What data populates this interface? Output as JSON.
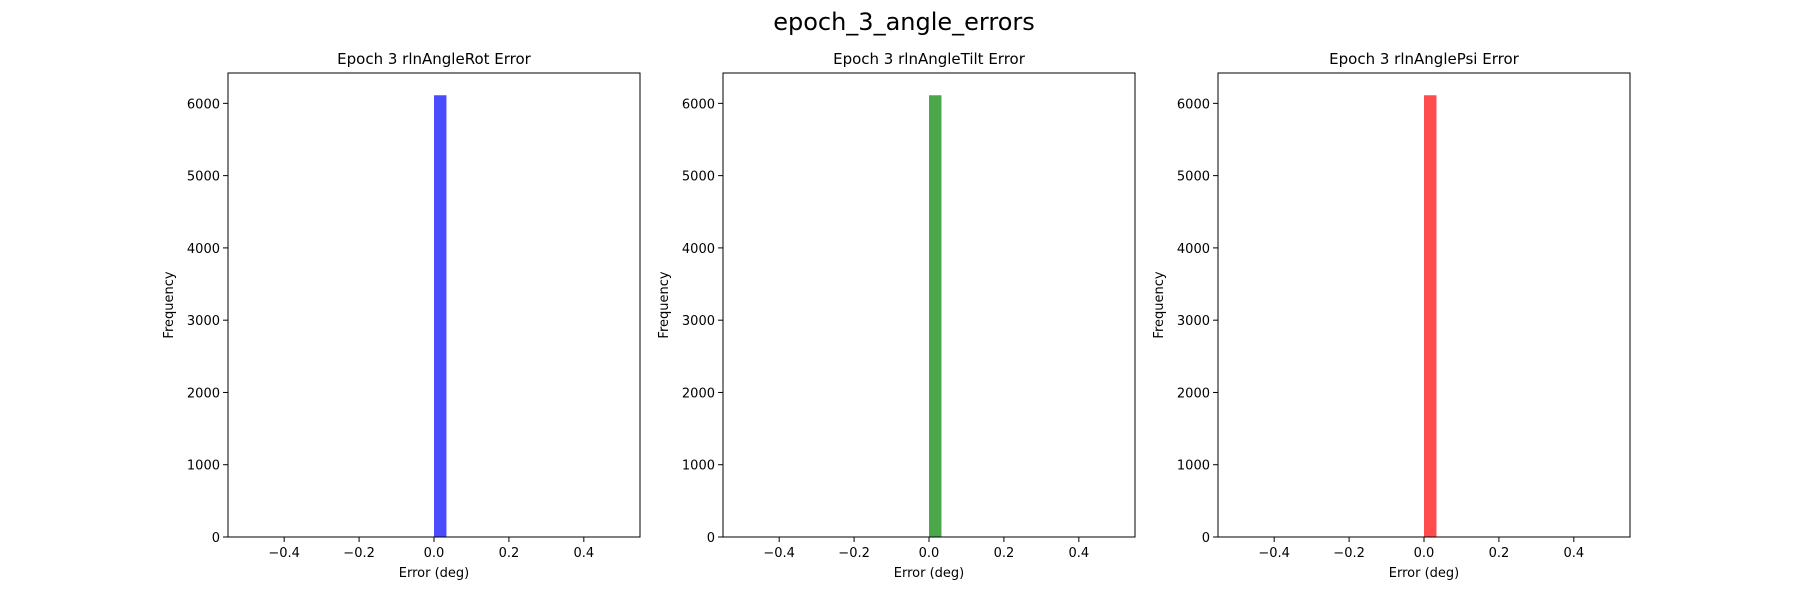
{
  "figure": {
    "suptitle": "epoch_3_angle_errors"
  },
  "chart_data": [
    {
      "type": "bar",
      "title": "Epoch 3 rlnAngleRot Error",
      "xlabel": "Error (deg)",
      "ylabel": "Frequency",
      "xlim": [
        -0.55,
        0.55
      ],
      "ylim": [
        0,
        6420
      ],
      "xticks": [
        -0.4,
        -0.2,
        0.0,
        0.2,
        0.4
      ],
      "xtick_labels": [
        "−0.4",
        "−0.2",
        "0.0",
        "0.2",
        "0.4"
      ],
      "yticks": [
        0,
        1000,
        2000,
        3000,
        4000,
        5000,
        6000
      ],
      "ytick_labels": [
        "0",
        "1000",
        "2000",
        "3000",
        "4000",
        "5000",
        "6000"
      ],
      "bins": [
        {
          "x0": 0.0,
          "x1": 0.0333,
          "count": 6112
        }
      ],
      "color": "#0000ff",
      "alpha": 0.7,
      "grid": false
    },
    {
      "type": "bar",
      "title": "Epoch 3 rlnAngleTilt Error",
      "xlabel": "Error (deg)",
      "ylabel": "Frequency",
      "xlim": [
        -0.55,
        0.55
      ],
      "ylim": [
        0,
        6420
      ],
      "xticks": [
        -0.4,
        -0.2,
        0.0,
        0.2,
        0.4
      ],
      "xtick_labels": [
        "−0.4",
        "−0.2",
        "0.0",
        "0.2",
        "0.4"
      ],
      "yticks": [
        0,
        1000,
        2000,
        3000,
        4000,
        5000,
        6000
      ],
      "ytick_labels": [
        "0",
        "1000",
        "2000",
        "3000",
        "4000",
        "5000",
        "6000"
      ],
      "bins": [
        {
          "x0": 0.0,
          "x1": 0.0333,
          "count": 6112
        }
      ],
      "color": "#008000",
      "alpha": 0.7,
      "grid": false
    },
    {
      "type": "bar",
      "title": "Epoch 3 rlnAnglePsi Error",
      "xlabel": "Error (deg)",
      "ylabel": "Frequency",
      "xlim": [
        -0.55,
        0.55
      ],
      "ylim": [
        0,
        6420
      ],
      "xticks": [
        -0.4,
        -0.2,
        0.0,
        0.2,
        0.4
      ],
      "xtick_labels": [
        "−0.4",
        "−0.2",
        "0.0",
        "0.2",
        "0.4"
      ],
      "yticks": [
        0,
        1000,
        2000,
        3000,
        4000,
        5000,
        6000
      ],
      "ytick_labels": [
        "0",
        "1000",
        "2000",
        "3000",
        "4000",
        "5000",
        "6000"
      ],
      "bins": [
        {
          "x0": 0.0,
          "x1": 0.0333,
          "count": 6112
        }
      ],
      "color": "#ff0000",
      "alpha": 0.7,
      "grid": false
    }
  ]
}
